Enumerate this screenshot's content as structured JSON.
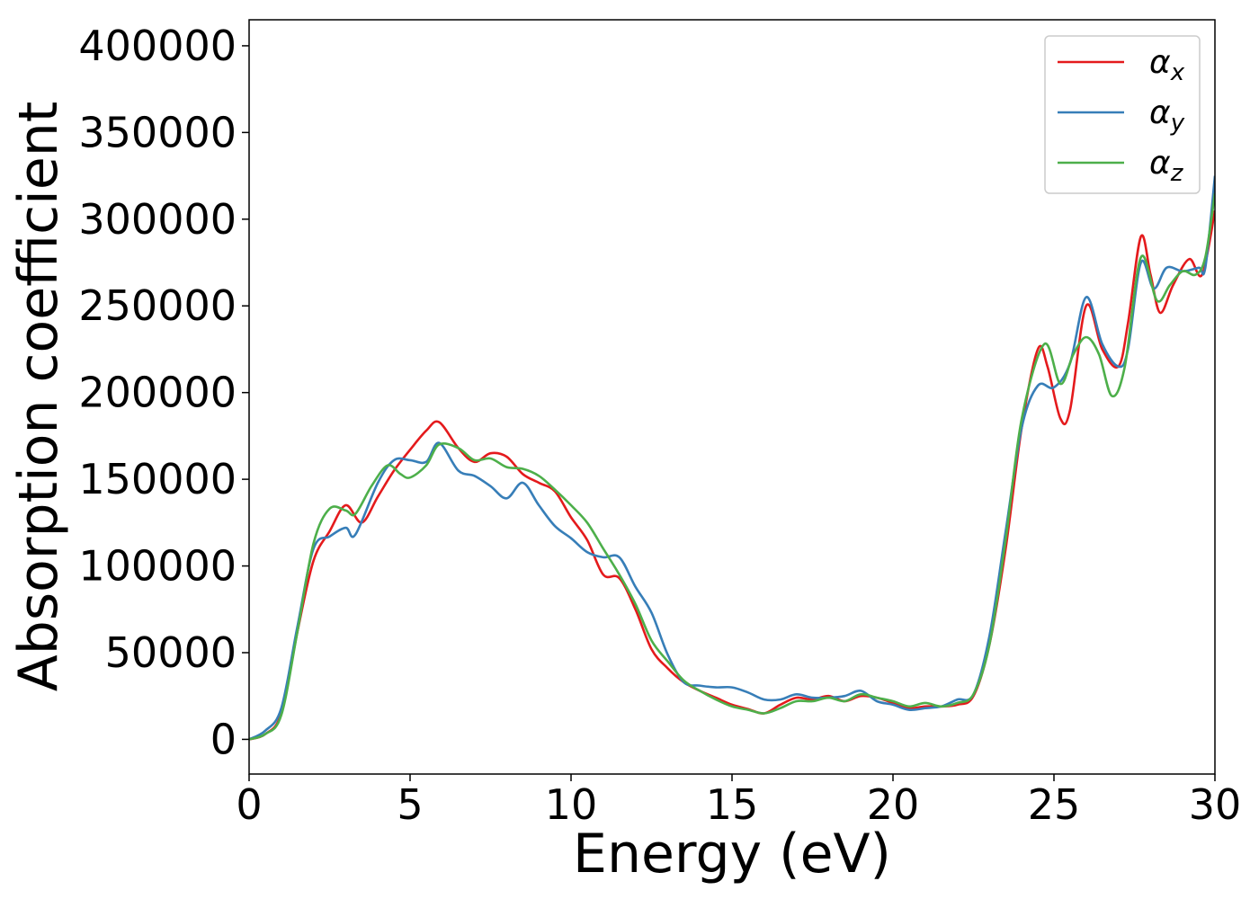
{
  "chart_data": {
    "type": "line",
    "xlabel": "Energy (eV)",
    "ylabel": "Absorption coefficient",
    "xlim": [
      0,
      30
    ],
    "ylim": [
      -20000,
      415000
    ],
    "xticks": [
      0,
      5,
      10,
      15,
      20,
      25,
      30
    ],
    "xtick_labels": [
      "0",
      "5",
      "10",
      "15",
      "20",
      "25",
      "30"
    ],
    "yticks": [
      0,
      50000,
      100000,
      150000,
      200000,
      250000,
      300000,
      350000,
      400000
    ],
    "ytick_labels": [
      "0",
      "50000",
      "100000",
      "150000",
      "200000",
      "250000",
      "300000",
      "350000",
      "400000"
    ],
    "grid": false,
    "legend_position": "top-right",
    "series": [
      {
        "name": "αx",
        "legend_main": "α",
        "legend_sub": "x",
        "color": "#e41a1c",
        "points": [
          [
            0,
            0
          ],
          [
            0.5,
            3000
          ],
          [
            1,
            15000
          ],
          [
            1.5,
            62000
          ],
          [
            2,
            103000
          ],
          [
            2.5,
            120000
          ],
          [
            3,
            135000
          ],
          [
            3.5,
            125000
          ],
          [
            4,
            140000
          ],
          [
            4.5,
            155000
          ],
          [
            5,
            167000
          ],
          [
            5.5,
            178000
          ],
          [
            5.9,
            183000
          ],
          [
            6.5,
            168000
          ],
          [
            7,
            160000
          ],
          [
            7.5,
            165000
          ],
          [
            8,
            163000
          ],
          [
            8.5,
            153000
          ],
          [
            9,
            148000
          ],
          [
            9.5,
            143000
          ],
          [
            10,
            128000
          ],
          [
            10.5,
            115000
          ],
          [
            11,
            95000
          ],
          [
            11.5,
            93000
          ],
          [
            12,
            75000
          ],
          [
            12.5,
            52000
          ],
          [
            13,
            41000
          ],
          [
            13.5,
            33000
          ],
          [
            14,
            28000
          ],
          [
            14.5,
            24000
          ],
          [
            15,
            20000
          ],
          [
            15.5,
            17500
          ],
          [
            16,
            15000
          ],
          [
            16.5,
            20000
          ],
          [
            17,
            24000
          ],
          [
            17.5,
            23000
          ],
          [
            18,
            25000
          ],
          [
            18.5,
            22000
          ],
          [
            19,
            25000
          ],
          [
            19.5,
            24000
          ],
          [
            20,
            21000
          ],
          [
            20.5,
            18000
          ],
          [
            21,
            19000
          ],
          [
            21.5,
            19000
          ],
          [
            22,
            20000
          ],
          [
            22.5,
            25000
          ],
          [
            23,
            55000
          ],
          [
            23.5,
            110000
          ],
          [
            24,
            180000
          ],
          [
            24.5,
            225000
          ],
          [
            24.8,
            215000
          ],
          [
            25.2,
            185000
          ],
          [
            25.5,
            190000
          ],
          [
            26,
            250000
          ],
          [
            26.5,
            225000
          ],
          [
            27,
            215000
          ],
          [
            27.3,
            240000
          ],
          [
            27.7,
            290000
          ],
          [
            28,
            268000
          ],
          [
            28.3,
            246000
          ],
          [
            28.7,
            262000
          ],
          [
            29.2,
            277000
          ],
          [
            29.6,
            268000
          ],
          [
            30,
            305000
          ]
        ]
      },
      {
        "name": "αy",
        "legend_main": "α",
        "legend_sub": "y",
        "color": "#377eb8",
        "points": [
          [
            0,
            0
          ],
          [
            0.5,
            5000
          ],
          [
            1,
            18000
          ],
          [
            1.5,
            65000
          ],
          [
            2,
            110000
          ],
          [
            2.5,
            117000
          ],
          [
            3,
            122000
          ],
          [
            3.3,
            118000
          ],
          [
            4,
            148000
          ],
          [
            4.5,
            161000
          ],
          [
            5,
            161000
          ],
          [
            5.5,
            160000
          ],
          [
            5.9,
            171000
          ],
          [
            6.5,
            155000
          ],
          [
            7,
            152000
          ],
          [
            7.5,
            146000
          ],
          [
            8,
            139000
          ],
          [
            8.5,
            148000
          ],
          [
            9,
            135000
          ],
          [
            9.5,
            123000
          ],
          [
            10,
            116000
          ],
          [
            10.5,
            108000
          ],
          [
            11,
            105000
          ],
          [
            11.5,
            105000
          ],
          [
            12,
            88000
          ],
          [
            12.5,
            73000
          ],
          [
            13,
            49000
          ],
          [
            13.5,
            33000
          ],
          [
            14,
            31000
          ],
          [
            14.5,
            30000
          ],
          [
            15,
            30000
          ],
          [
            15.5,
            27000
          ],
          [
            16,
            23000
          ],
          [
            16.5,
            23000
          ],
          [
            17,
            26000
          ],
          [
            17.5,
            24000
          ],
          [
            18,
            24000
          ],
          [
            18.5,
            25000
          ],
          [
            19,
            28000
          ],
          [
            19.5,
            22000
          ],
          [
            20,
            20000
          ],
          [
            20.5,
            17000
          ],
          [
            21,
            18000
          ],
          [
            21.5,
            19000
          ],
          [
            22,
            23000
          ],
          [
            22.5,
            26000
          ],
          [
            23,
            60000
          ],
          [
            23.5,
            120000
          ],
          [
            24,
            180000
          ],
          [
            24.5,
            204000
          ],
          [
            25,
            203000
          ],
          [
            25.5,
            217000
          ],
          [
            26,
            255000
          ],
          [
            26.5,
            228000
          ],
          [
            27,
            215000
          ],
          [
            27.3,
            225000
          ],
          [
            27.7,
            275000
          ],
          [
            28.1,
            260000
          ],
          [
            28.5,
            272000
          ],
          [
            29,
            270000
          ],
          [
            29.5,
            272000
          ],
          [
            29.7,
            272000
          ],
          [
            30,
            325000
          ]
        ]
      },
      {
        "name": "αz",
        "legend_main": "α",
        "legend_sub": "z",
        "color": "#4daf4a",
        "points": [
          [
            0,
            0
          ],
          [
            0.5,
            3000
          ],
          [
            1,
            14000
          ],
          [
            1.5,
            62000
          ],
          [
            2,
            113000
          ],
          [
            2.5,
            133000
          ],
          [
            3,
            132000
          ],
          [
            3.3,
            130000
          ],
          [
            3.8,
            146000
          ],
          [
            4.3,
            158000
          ],
          [
            4.7,
            153000
          ],
          [
            5,
            151000
          ],
          [
            5.5,
            158000
          ],
          [
            5.9,
            170000
          ],
          [
            6.5,
            168000
          ],
          [
            7,
            161000
          ],
          [
            7.5,
            162000
          ],
          [
            8,
            157000
          ],
          [
            8.5,
            156000
          ],
          [
            9,
            152000
          ],
          [
            9.5,
            144000
          ],
          [
            10,
            135000
          ],
          [
            10.5,
            125000
          ],
          [
            11,
            110000
          ],
          [
            11.5,
            95000
          ],
          [
            12,
            78000
          ],
          [
            12.5,
            57000
          ],
          [
            13,
            45000
          ],
          [
            13.5,
            34000
          ],
          [
            14,
            28000
          ],
          [
            14.5,
            23000
          ],
          [
            15,
            19000
          ],
          [
            15.5,
            17000
          ],
          [
            16,
            15000
          ],
          [
            16.5,
            18000
          ],
          [
            17,
            22000
          ],
          [
            17.5,
            22000
          ],
          [
            18,
            24000
          ],
          [
            18.5,
            22000
          ],
          [
            19,
            26000
          ],
          [
            19.5,
            24000
          ],
          [
            20,
            22000
          ],
          [
            20.5,
            19000
          ],
          [
            21,
            21000
          ],
          [
            21.5,
            19000
          ],
          [
            22,
            21000
          ],
          [
            22.5,
            26000
          ],
          [
            23,
            55000
          ],
          [
            23.5,
            115000
          ],
          [
            24,
            185000
          ],
          [
            24.7,
            228000
          ],
          [
            25.2,
            205000
          ],
          [
            25.6,
            222000
          ],
          [
            26,
            232000
          ],
          [
            26.4,
            222000
          ],
          [
            26.8,
            198000
          ],
          [
            27.2,
            215000
          ],
          [
            27.7,
            278000
          ],
          [
            28.2,
            253000
          ],
          [
            28.6,
            262000
          ],
          [
            29,
            270000
          ],
          [
            29.4,
            268000
          ],
          [
            29.7,
            278000
          ],
          [
            30,
            315000
          ]
        ]
      }
    ]
  }
}
